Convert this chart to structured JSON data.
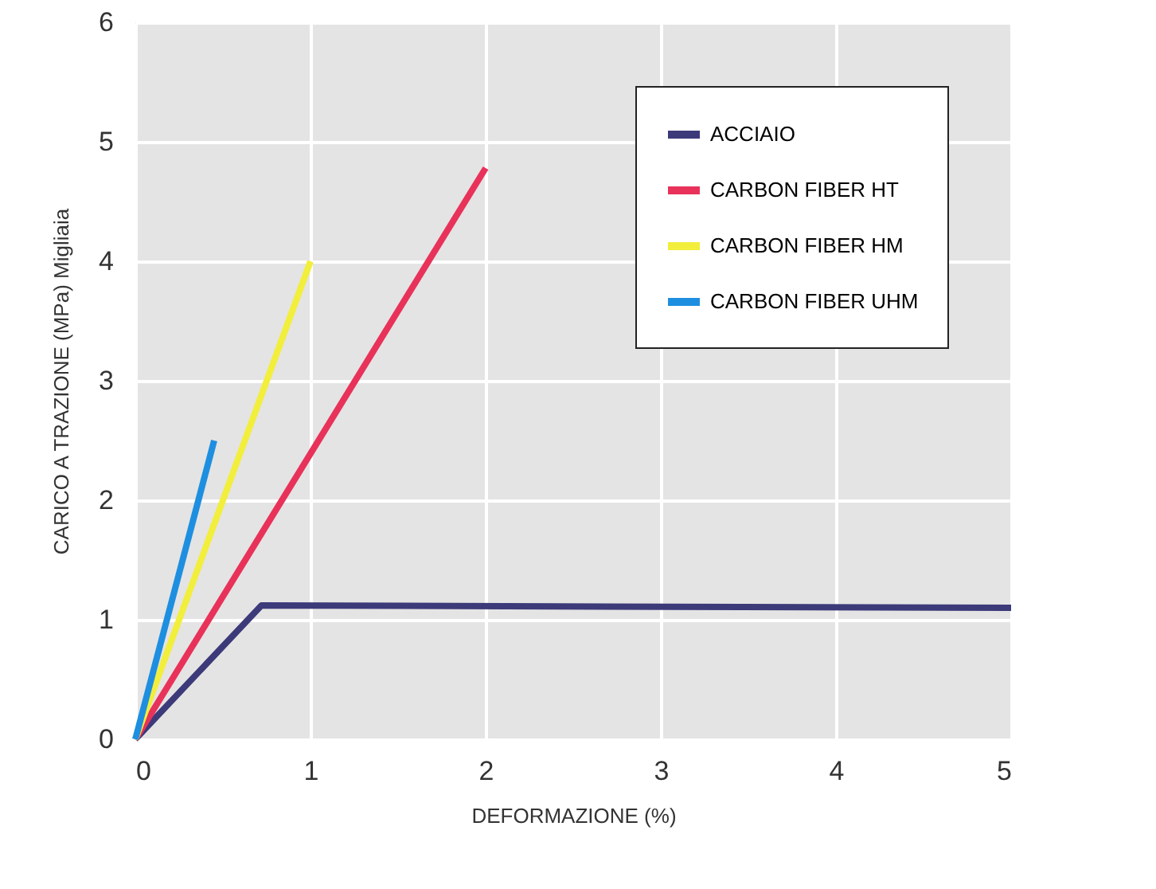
{
  "chart_data": {
    "type": "line",
    "xlabel": "DEFORMAZIONE (%)",
    "ylabel": "CARICO A TRAZIONE (MPa) Migliaia",
    "xlim": [
      0,
      5
    ],
    "xticks": [
      0,
      1,
      2,
      3,
      4,
      5
    ],
    "ylim": [
      0,
      6
    ],
    "yticks": [
      0,
      1,
      2,
      3,
      4,
      5,
      6
    ],
    "grid": true,
    "legend": "top right",
    "marker": "none",
    "line_style": "solid",
    "series": [
      {
        "name": "ACCIAIO",
        "color": "#3d3a7a",
        "x": [
          0,
          0.72,
          5
        ],
        "values": [
          0,
          1.12,
          1.1
        ]
      },
      {
        "name": "CARBON FIBER HT",
        "color": "#e8325a",
        "x": [
          0,
          2
        ],
        "values": [
          0,
          4.78
        ]
      },
      {
        "name": "CARBON FIBER HM",
        "color": "#f2ee3c",
        "x": [
          0,
          1
        ],
        "values": [
          0,
          4.0
        ]
      },
      {
        "name": "CARBON FIBER UHM",
        "color": "#1e8fe0",
        "x": [
          0,
          0.45
        ],
        "values": [
          0,
          2.5
        ]
      }
    ]
  }
}
